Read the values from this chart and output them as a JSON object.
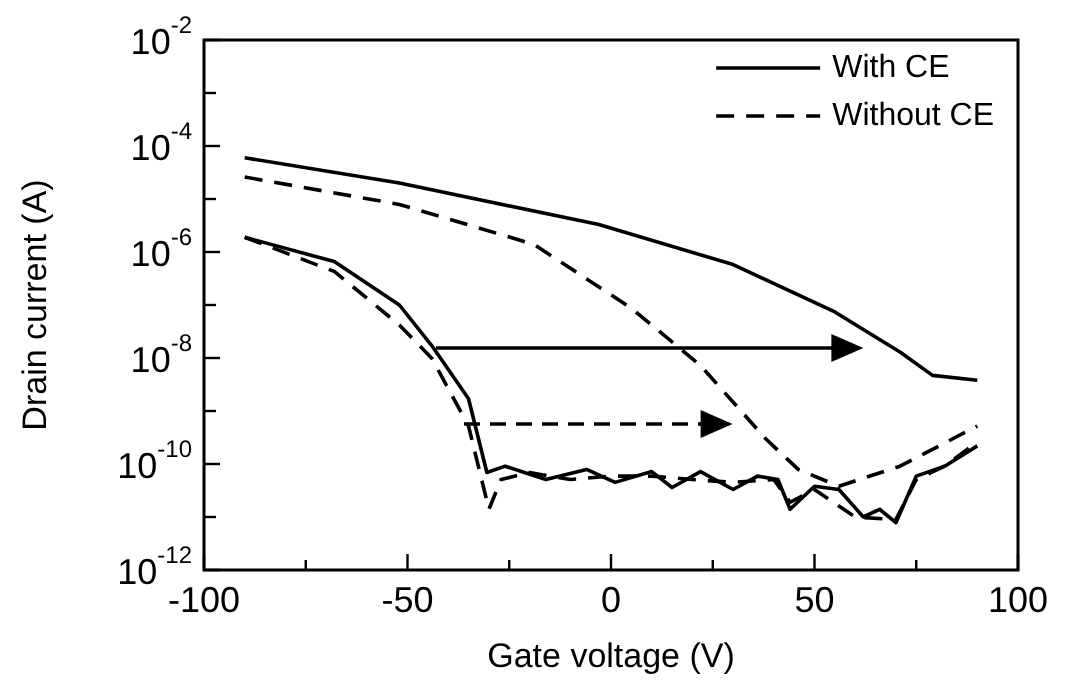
{
  "chart_data": {
    "type": "line",
    "xlabel": "Gate voltage (V)",
    "ylabel": "Drain current (A)",
    "log": "y",
    "marker": "none",
    "legend": "top right",
    "xlim": [
      -100,
      100
    ],
    "xticks": [
      -100,
      {
        "value": -75,
        "label": null
      },
      -50,
      {
        "value": -25,
        "label": null
      },
      0,
      {
        "value": 25,
        "label": null
      },
      50,
      {
        "value": 75,
        "label": null
      },
      100
    ],
    "ylim": [
      1e-12,
      0.01
    ],
    "yticks": [
      {
        "value": 1e-12,
        "label": "10$^{-12}$"
      },
      {
        "value": 1e-11,
        "label": null
      },
      {
        "value": 1e-10,
        "label": "10$^{-10}$"
      },
      {
        "value": 1e-09,
        "label": null
      },
      {
        "value": 1e-08,
        "label": "10$^{-8}$"
      },
      {
        "value": 1e-07,
        "label": null
      },
      {
        "value": 1e-06,
        "label": "10$^{-6}$"
      },
      {
        "value": 1e-05,
        "label": null
      },
      {
        "value": 0.0001,
        "label": "10$^{-4}$"
      },
      {
        "value": 0.001,
        "label": null
      },
      {
        "value": 0.01,
        "label": "10$^{-2}$"
      }
    ],
    "series": [
      {
        "name": "With CE",
        "color": "#000000",
        "line_style": "solid",
        "x": [
          -90,
          -52,
          -3,
          30,
          55,
          71,
          79,
          90
        ],
        "values": [
          6e-05,
          2e-05,
          3.3e-06,
          5.8e-07,
          7.4e-08,
          1.3e-08,
          4.7e-09,
          3.8e-09
        ]
      },
      {
        "name": "Without CE",
        "color": "#000000",
        "line_style": "dashed",
        "x": [
          -90,
          -52,
          -19,
          5,
          22,
          38,
          46,
          56,
          71,
          90
        ],
        "values": [
          2.6e-05,
          7.9e-06,
          1.4e-06,
          8.7e-08,
          7.2e-09,
          3e-10,
          7.9e-11,
          3.8e-11,
          9.1e-11,
          5.2e-10
        ]
      },
      {
        "color": "#000000",
        "line_style": "solid",
        "x": [
          -90,
          -68,
          -52,
          -44,
          -35,
          -30.5,
          -26,
          -16,
          -6,
          1,
          10,
          15,
          22,
          30,
          36,
          41,
          44,
          50,
          56,
          62,
          66,
          70,
          75,
          82,
          90
        ],
        "values": [
          1.9e-06,
          6.6e-07,
          1e-07,
          1.7e-08,
          1.7e-09,
          6.9e-11,
          9.1e-11,
          5.1e-11,
          7.9e-11,
          4.5e-11,
          7.2e-11,
          3.6e-11,
          7.2e-11,
          3.3e-11,
          5.9e-11,
          5.1e-11,
          1.4e-11,
          3.8e-11,
          3.3e-11,
          1e-11,
          1.4e-11,
          7.8e-12,
          5.9e-11,
          9.1e-11,
          2.2e-10
        ]
      },
      {
        "color": "#000000",
        "line_style": "dashed",
        "x": [
          -90,
          -68,
          -52,
          -44,
          -35,
          -30,
          -27,
          -20,
          -10,
          0,
          10,
          20,
          30,
          40,
          44,
          50,
          60,
          70,
          75,
          82,
          90
        ],
        "values": [
          1.9e-06,
          4.3e-07,
          4.2e-08,
          9.8e-09,
          5.2e-10,
          1.4e-11,
          5.1e-11,
          6.9e-11,
          5.1e-11,
          5.9e-11,
          5.9e-11,
          5.1e-11,
          4.5e-11,
          5.1e-11,
          1.9e-11,
          3.3e-11,
          1e-11,
          8.9e-12,
          5.1e-11,
          9.1e-11,
          2.6e-10
        ]
      }
    ]
  }
}
